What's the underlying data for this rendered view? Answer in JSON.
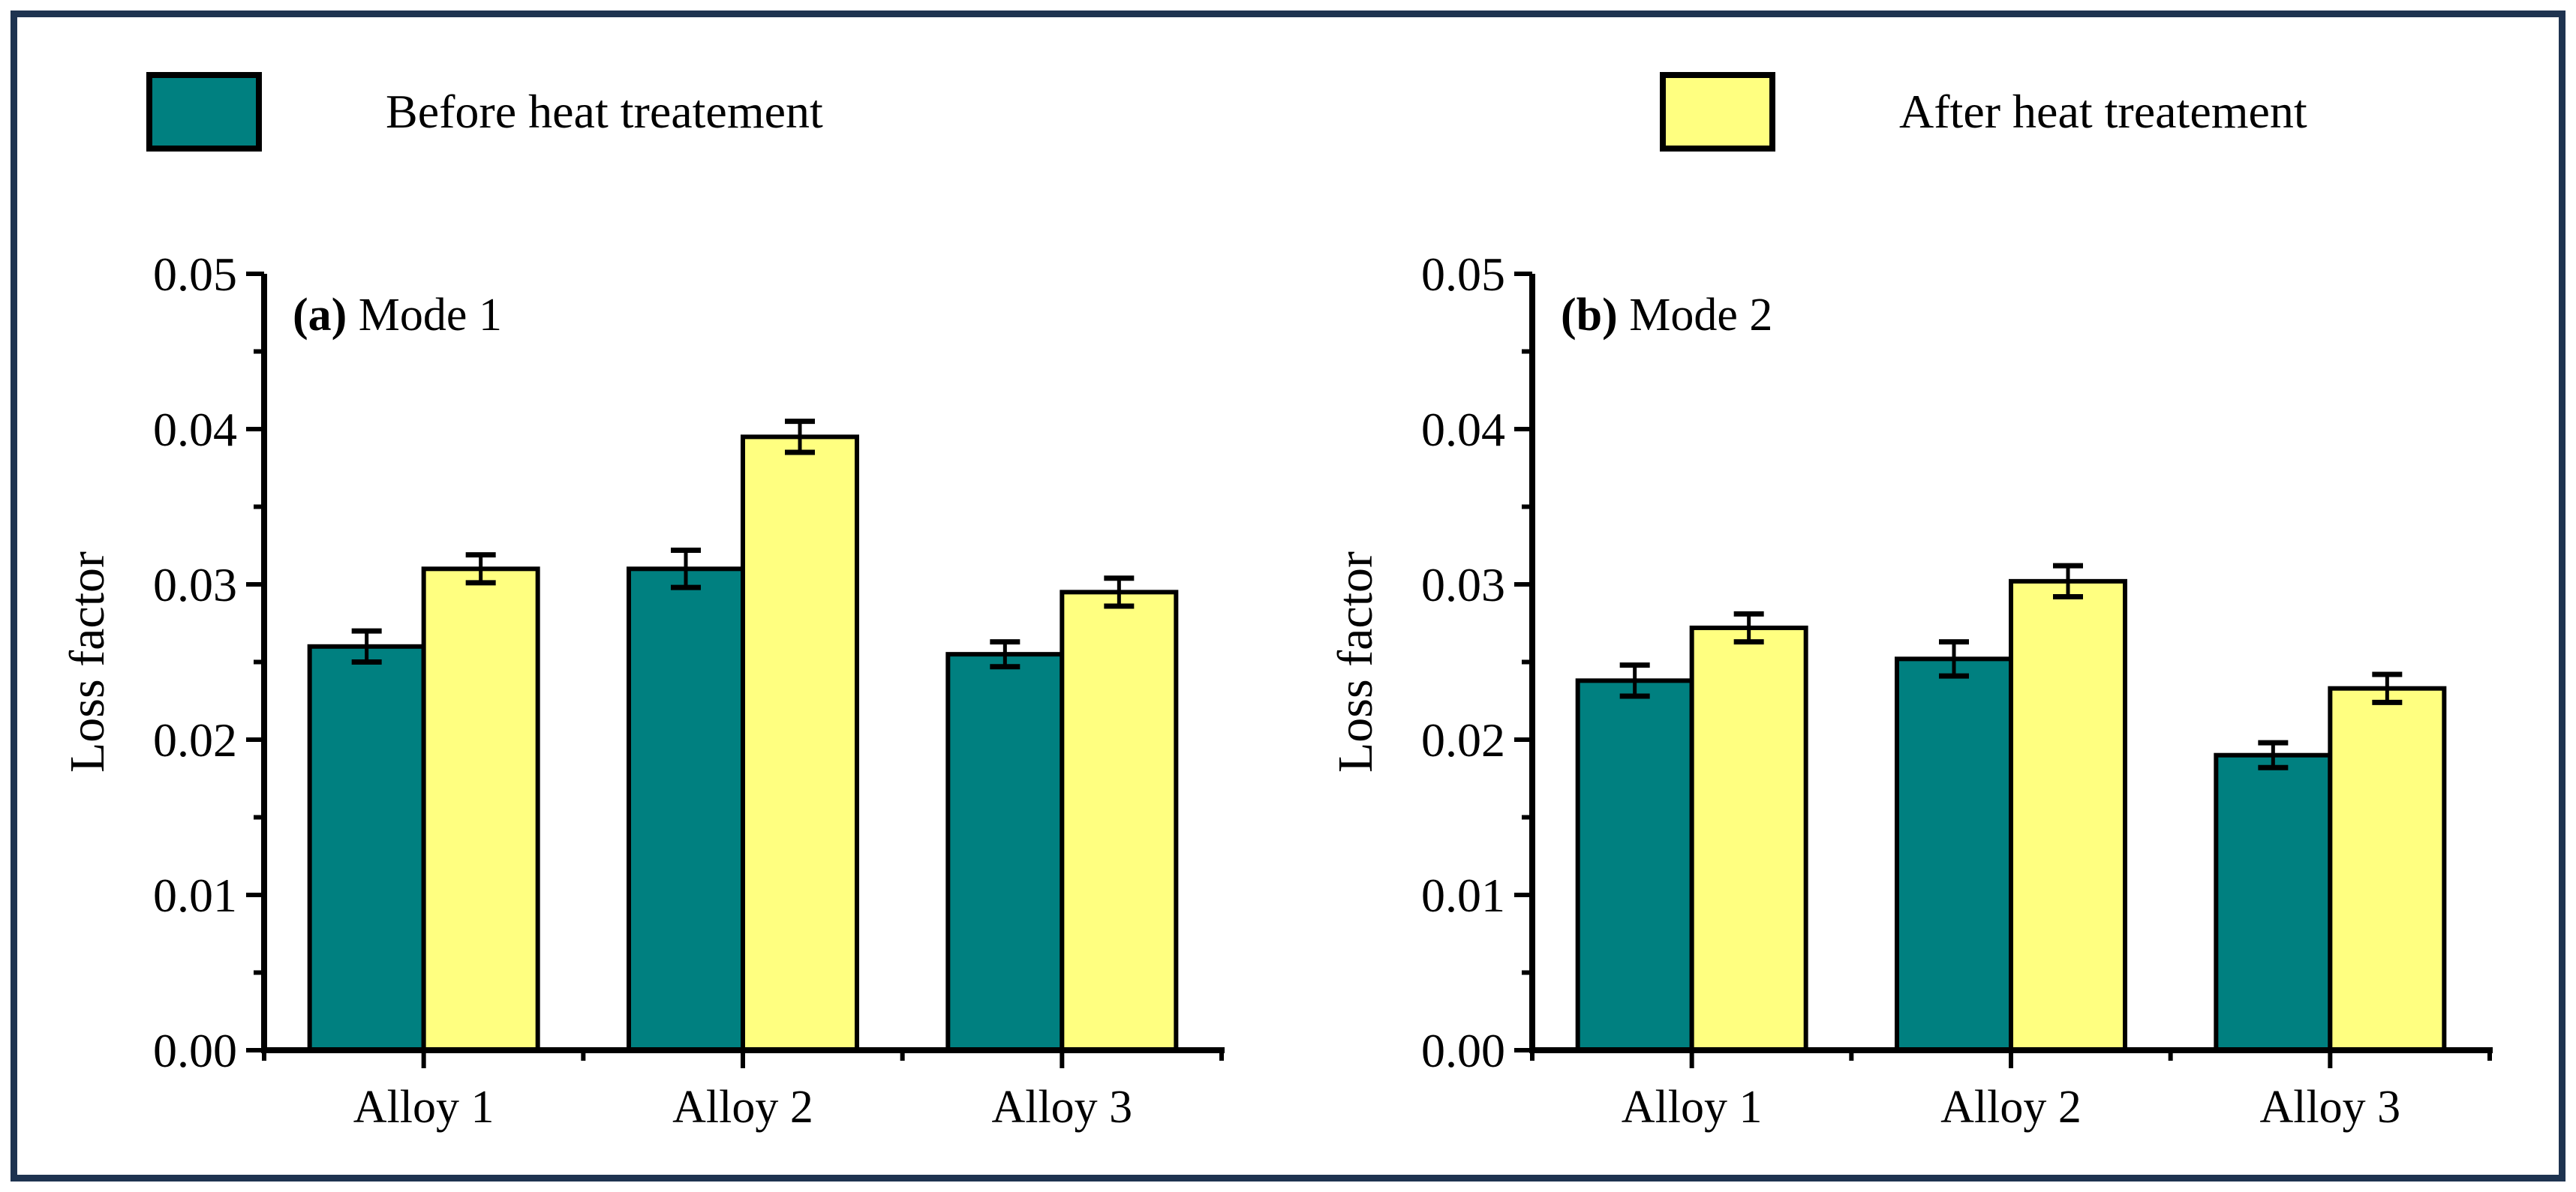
{
  "figure": {
    "background_color": "#ffffff",
    "border_color": "#1e3350"
  },
  "legend": {
    "items": [
      {
        "label": "Before heat treatement",
        "color": "#008080"
      },
      {
        "label": "After heat treatement",
        "color": "#ffff80"
      }
    ]
  },
  "chart_data": [
    {
      "type": "bar",
      "panel_label": "(a)",
      "title": "Mode 1",
      "ylabel": "Loss factor",
      "xlabel": "",
      "categories": [
        "Alloy 1",
        "Alloy 2",
        "Alloy 3"
      ],
      "series": [
        {
          "name": "Before heat treatement",
          "color": "#008080",
          "values": [
            0.026,
            0.031,
            0.0255
          ],
          "errors": [
            0.001,
            0.0012,
            0.0008
          ]
        },
        {
          "name": "After heat treatement",
          "color": "#ffff80",
          "values": [
            0.031,
            0.0395,
            0.0295
          ],
          "errors": [
            0.0009,
            0.001,
            0.0009
          ]
        }
      ],
      "ylim": [
        0,
        0.05
      ],
      "ytick_step": 0.01,
      "yminor_step": 0.005,
      "ytick_labels": [
        "0.00",
        "0.01",
        "0.02",
        "0.03",
        "0.04",
        "0.05"
      ],
      "grid": false,
      "error_bars": true,
      "legend_position": "top"
    },
    {
      "type": "bar",
      "panel_label": "(b)",
      "title": "Mode 2",
      "ylabel": "Loss factor",
      "xlabel": "",
      "categories": [
        "Alloy 1",
        "Alloy 2",
        "Alloy 3"
      ],
      "series": [
        {
          "name": "Before heat treatement",
          "color": "#008080",
          "values": [
            0.0238,
            0.0252,
            0.019
          ],
          "errors": [
            0.001,
            0.0011,
            0.0008
          ]
        },
        {
          "name": "After heat treatement",
          "color": "#ffff80",
          "values": [
            0.0272,
            0.0302,
            0.0233
          ],
          "errors": [
            0.0009,
            0.001,
            0.0009
          ]
        }
      ],
      "ylim": [
        0,
        0.05
      ],
      "ytick_step": 0.01,
      "yminor_step": 0.005,
      "ytick_labels": [
        "0.00",
        "0.01",
        "0.02",
        "0.03",
        "0.04",
        "0.05"
      ],
      "grid": false,
      "error_bars": true,
      "legend_position": "top"
    }
  ]
}
